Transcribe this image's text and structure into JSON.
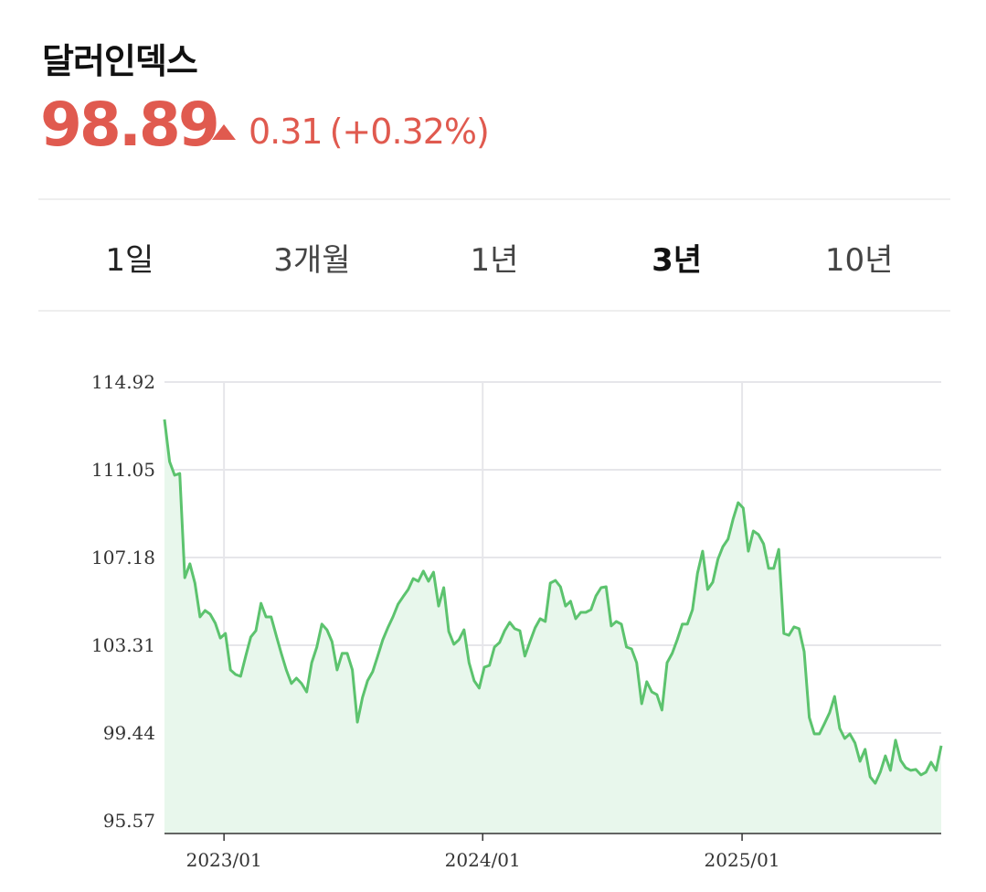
{
  "header": {
    "title": "달러인덱스",
    "price": "98.89",
    "change": "0.31",
    "change_pct": "(+0.32%)",
    "direction_icon": "triangle-up-icon",
    "up_color": "#e05a4f"
  },
  "tabs": [
    {
      "label": "1일",
      "active": false
    },
    {
      "label": "3개월",
      "active": false
    },
    {
      "label": "1년",
      "active": false
    },
    {
      "label": "3년",
      "active": true
    },
    {
      "label": "10년",
      "active": false
    }
  ],
  "chart_data": {
    "type": "area",
    "title": "",
    "xlabel": "",
    "ylabel": "",
    "x_range": [
      "2022-10-09",
      "2025-10-09"
    ],
    "ylim": [
      95.0,
      114.92
    ],
    "yticks": [
      "114.92",
      "111.05",
      "107.18",
      "103.31",
      "99.44",
      "95.57"
    ],
    "xticks": [
      {
        "label": "2023/01",
        "date": "2023-01-01"
      },
      {
        "label": "2024/01",
        "date": "2024-01-01"
      },
      {
        "label": "2025/01",
        "date": "2025-01-01"
      }
    ],
    "grid": true,
    "line_color": "#5cc36e",
    "fill_color": "#e8f7ec",
    "values": [
      113.27,
      111.41,
      110.81,
      110.89,
      106.29,
      106.9,
      106.05,
      104.56,
      104.84,
      104.68,
      104.28,
      103.63,
      103.83,
      102.22,
      102.02,
      101.94,
      102.83,
      103.67,
      103.95,
      105.16,
      104.56,
      104.56,
      103.75,
      102.95,
      102.22,
      101.62,
      101.86,
      101.62,
      101.25,
      102.54,
      103.23,
      104.24,
      103.99,
      103.47,
      102.22,
      102.95,
      102.95,
      102.22,
      99.92,
      101.01,
      101.74,
      102.14,
      102.83,
      103.55,
      104.08,
      104.56,
      105.12,
      105.45,
      105.77,
      106.25,
      106.13,
      106.58,
      106.13,
      106.53,
      105.04,
      105.85,
      103.92,
      103.35,
      103.55,
      103.99,
      102.54,
      101.74,
      101.42,
      102.34,
      102.42,
      103.23,
      103.43,
      103.95,
      104.32,
      104.04,
      103.95,
      102.83,
      103.47,
      104.08,
      104.48,
      104.36,
      106.05,
      106.17,
      105.89,
      105.04,
      105.25,
      104.48,
      104.76,
      104.76,
      104.88,
      105.49,
      105.85,
      105.89,
      104.16,
      104.36,
      104.24,
      103.23,
      103.15,
      102.54,
      100.73,
      101.7,
      101.25,
      101.13,
      100.45,
      102.54,
      102.95,
      103.55,
      104.24,
      104.24,
      104.88,
      106.49,
      107.46,
      105.77,
      106.09,
      107.1,
      107.66,
      107.99,
      108.87,
      109.6,
      109.36,
      107.46,
      108.35,
      108.19,
      107.78,
      106.7,
      106.7,
      107.54,
      103.83,
      103.75,
      104.12,
      104.04,
      103.03,
      100.13,
      99.4,
      99.4,
      99.85,
      100.33,
      101.05,
      99.64,
      99.2,
      99.4,
      99.0,
      98.19,
      98.72,
      97.51,
      97.22,
      97.71,
      98.43,
      97.79,
      99.12,
      98.23,
      97.91,
      97.79,
      97.83,
      97.59,
      97.71,
      98.15,
      97.79,
      98.88
    ]
  }
}
